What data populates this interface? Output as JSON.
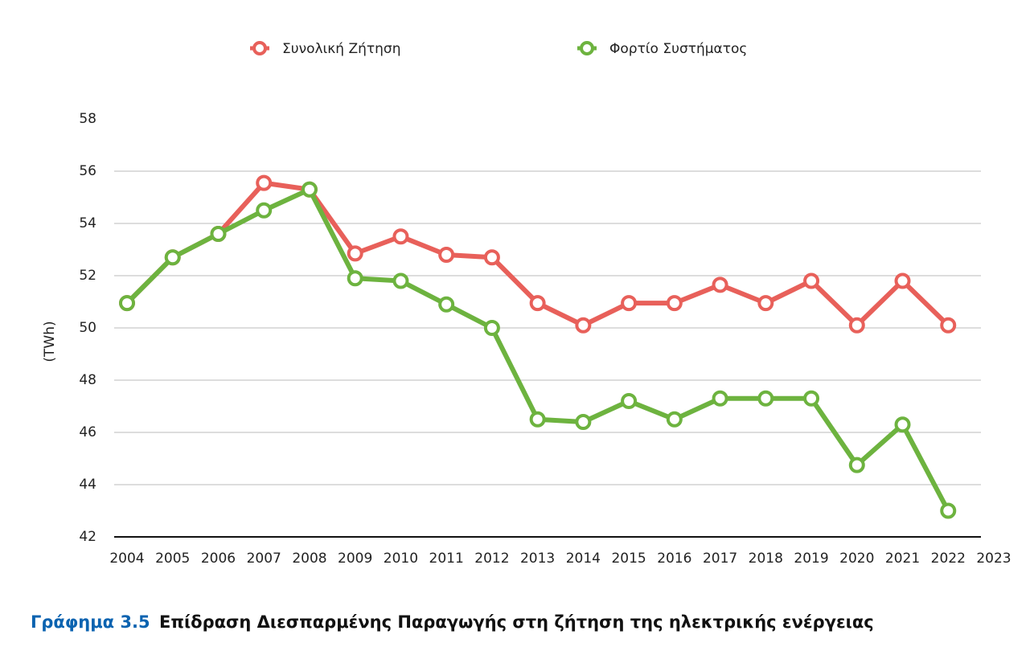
{
  "chart_data": {
    "type": "line",
    "caption_label": "Γράφημα 3.5",
    "caption": "Επίδραση Διεσπαρμένης Παραγωγής στη ζήτηση της ηλεκτρικής ενέργειας",
    "ylabel": "(TWh)",
    "x": [
      2004,
      2005,
      2006,
      2007,
      2008,
      2009,
      2010,
      2011,
      2012,
      2013,
      2014,
      2015,
      2016,
      2017,
      2018,
      2019,
      2020,
      2021,
      2022
    ],
    "series": [
      {
        "name": "Συνολική Ζήτηση",
        "color": "#e8605a",
        "values": [
          50.95,
          52.7,
          53.6,
          55.55,
          55.3,
          52.85,
          53.5,
          52.8,
          52.7,
          50.95,
          50.1,
          50.95,
          50.95,
          51.65,
          50.95,
          51.8,
          50.1,
          51.8,
          50.1
        ]
      },
      {
        "name": "Φορτίο Συστήματος",
        "color": "#6db33f",
        "values": [
          50.95,
          52.7,
          53.6,
          54.5,
          55.3,
          51.9,
          51.8,
          50.9,
          50.0,
          46.5,
          46.4,
          47.2,
          46.5,
          47.3,
          47.3,
          47.3,
          44.75,
          46.3,
          43.0
        ]
      }
    ],
    "xlim": [
      2004,
      2023
    ],
    "xticks": [
      2004,
      2005,
      2006,
      2007,
      2008,
      2009,
      2010,
      2011,
      2012,
      2013,
      2014,
      2015,
      2016,
      2017,
      2018,
      2019,
      2020,
      2021,
      2022,
      2023
    ],
    "ylim": [
      42,
      58
    ],
    "yticks": [
      42,
      44,
      46,
      48,
      50,
      52,
      54,
      56,
      58
    ],
    "grid": true
  }
}
